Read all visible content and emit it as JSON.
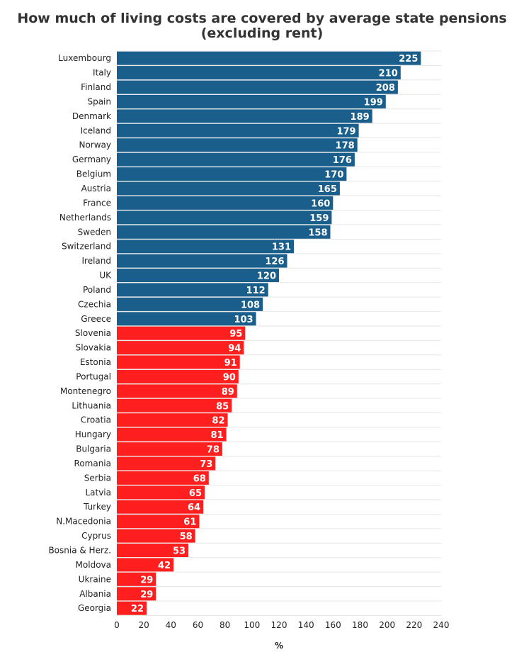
{
  "chart_data": {
    "type": "bar",
    "orientation": "horizontal",
    "title": "How much of living costs are covered by average state pensions (excluding rent)",
    "xlabel": "%",
    "ylabel": "",
    "xlim": [
      0,
      240
    ],
    "xticks": [
      0,
      20,
      40,
      60,
      80,
      100,
      120,
      140,
      160,
      180,
      200,
      220,
      240
    ],
    "grid": "horizontal",
    "legend": "none",
    "colors": {
      "above_100": "#1a5e8c",
      "below_100": "#ff1f1f"
    },
    "categories": [
      "Luxembourg",
      "Italy",
      "Finland",
      "Spain",
      "Denmark",
      "Iceland",
      "Norway",
      "Germany",
      "Belgium",
      "Austria",
      "France",
      "Netherlands",
      "Sweden",
      "Switzerland",
      "Ireland",
      "UK",
      "Poland",
      "Czechia",
      "Greece",
      "Slovenia",
      "Slovakia",
      "Estonia",
      "Portugal",
      "Montenegro",
      "Lithuania",
      "Croatia",
      "Hungary",
      "Bulgaria",
      "Romania",
      "Serbia",
      "Latvia",
      "Turkey",
      "N.Macedonia",
      "Cyprus",
      "Bosnia & Herz.",
      "Moldova",
      "Ukraine",
      "Albania",
      "Georgia"
    ],
    "values": [
      225,
      210,
      208,
      199,
      189,
      179,
      178,
      176,
      170,
      165,
      160,
      159,
      158,
      131,
      126,
      120,
      112,
      108,
      103,
      95,
      94,
      91,
      90,
      89,
      85,
      82,
      81,
      78,
      73,
      68,
      65,
      64,
      61,
      58,
      53,
      42,
      29,
      29,
      22
    ]
  }
}
